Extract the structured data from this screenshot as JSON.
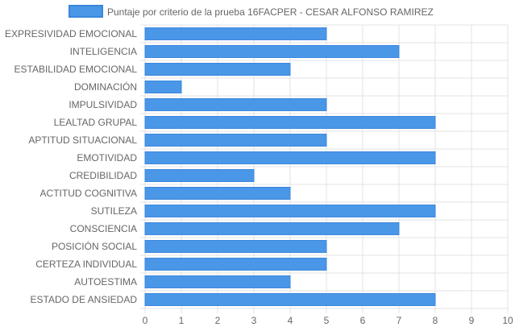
{
  "chart_data": {
    "type": "bar",
    "orientation": "horizontal",
    "legend": {
      "position": "top",
      "entries": [
        "Puntaje por criterio de la prueba 16FACPER - CESAR ALFONSO RAMIREZ"
      ]
    },
    "series": [
      {
        "name": "Puntaje por criterio de la prueba 16FACPER - CESAR ALFONSO RAMIREZ",
        "color": "#4a97e8",
        "border_color": "#3a87dc",
        "values": [
          5,
          7,
          4,
          1,
          5,
          8,
          5,
          8,
          3,
          4,
          8,
          7,
          5,
          5,
          4,
          8
        ]
      }
    ],
    "categories": [
      "EXPRESIVIDAD EMOCIONAL",
      "INTELIGENCIA",
      "ESTABILIDAD EMOCIONAL",
      "DOMINACIÓN",
      "IMPULSIVIDAD",
      "LEALTAD GRUPAL",
      "APTITUD SITUACIONAL",
      "EMOTIVIDAD",
      "CREDIBILIDAD",
      "ACTITUD COGNITIVA",
      "SUTILEZA",
      "CONSCIENCIA",
      "POSICIÓN SOCIAL",
      "CERTEZA INDIVIDUAL",
      "AUTOESTIMA",
      "ESTADO DE ANSIEDAD"
    ],
    "xlim": [
      0,
      10
    ],
    "x_ticks": [
      "0",
      "1",
      "2",
      "3",
      "4",
      "5",
      "6",
      "7",
      "8",
      "9",
      "10"
    ],
    "grid": true,
    "grid_color": "#e3e3e3",
    "text_color": "#666666"
  }
}
